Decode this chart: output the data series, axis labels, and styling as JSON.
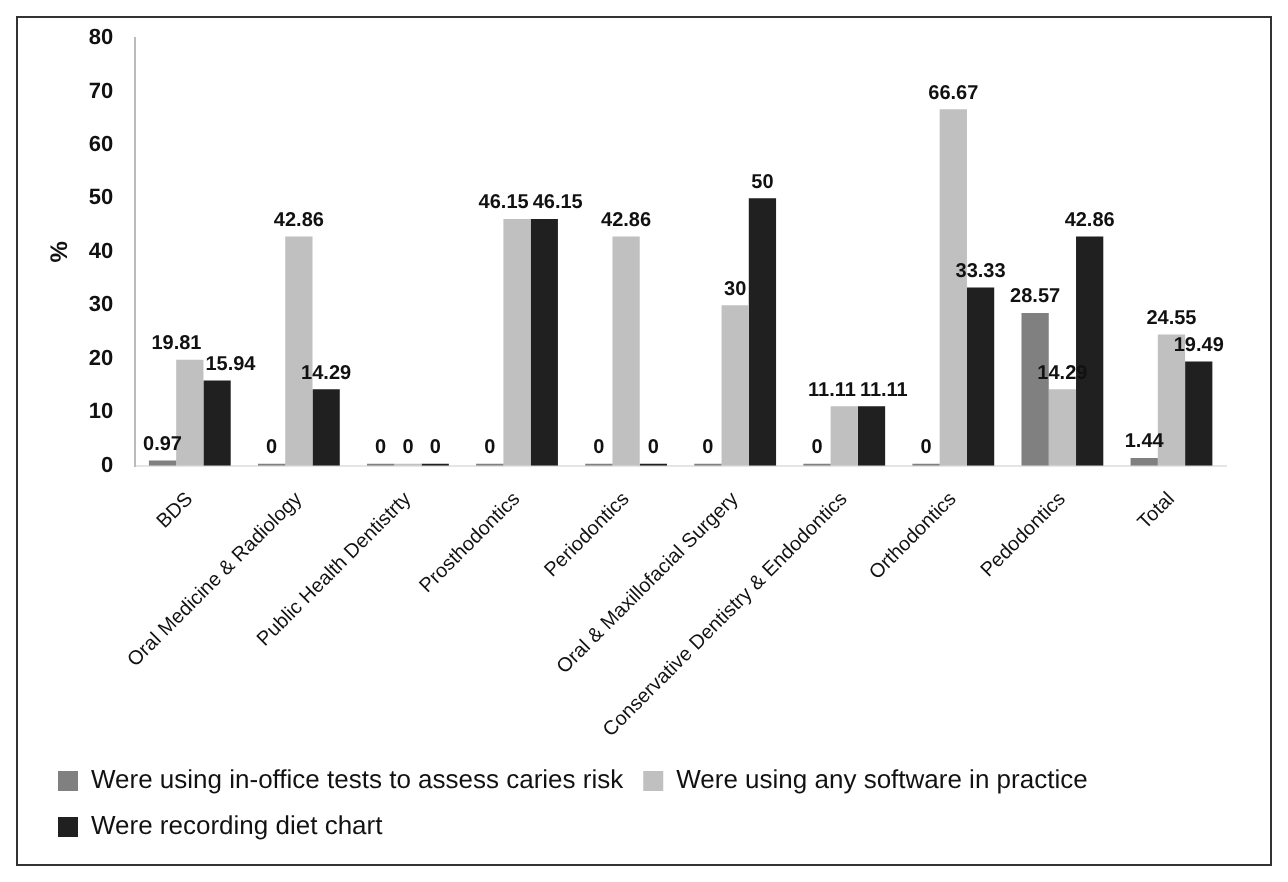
{
  "chart_data": {
    "type": "bar",
    "ylabel": "%",
    "categories": [
      "BDS",
      "Oral Medicine & Radiology",
      "Public Health Dentistrty",
      "Prosthodontics",
      "Periodontics",
      "Oral & Maxillofacial Surgery",
      "Conservative Dentistry & Endodontics",
      "Orthodontics",
      "Pedodontics",
      "Total"
    ],
    "series": [
      {
        "name": "Were using in-office tests to assess caries risk",
        "color": "#808080",
        "values": [
          0.97,
          0,
          0,
          0,
          0,
          0,
          0,
          0,
          28.57,
          1.44
        ]
      },
      {
        "name": "Were using any software in practice",
        "color": "#c0c0c0",
        "values": [
          19.81,
          42.86,
          0,
          46.15,
          42.86,
          30,
          11.11,
          66.67,
          14.29,
          24.55
        ]
      },
      {
        "name": "Were recording diet chart",
        "color": "#202020",
        "values": [
          15.94,
          14.29,
          0,
          46.15,
          0,
          50,
          11.11,
          33.33,
          42.86,
          19.49
        ]
      }
    ],
    "ylim": [
      0,
      80
    ],
    "yticks": [
      0,
      10,
      20,
      30,
      40,
      50,
      60,
      70,
      80
    ],
    "grid": false,
    "legend": "bottom",
    "data_labels": true
  }
}
